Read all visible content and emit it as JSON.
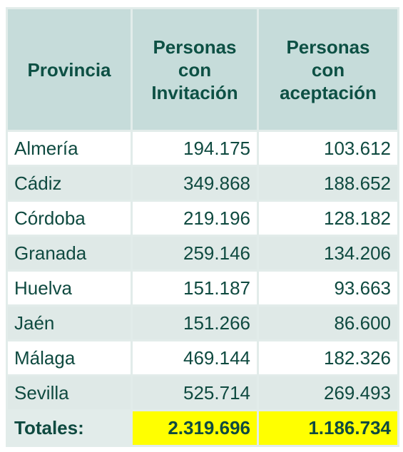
{
  "table": {
    "headers": {
      "provincia": "Provincia",
      "invitacion": "Personas con Invitación",
      "aceptacion": "Personas con aceptación"
    },
    "rows": [
      {
        "provincia": "Almería",
        "invitacion": "194.175",
        "aceptacion": "103.612"
      },
      {
        "provincia": "Cádiz",
        "invitacion": "349.868",
        "aceptacion": "188.652"
      },
      {
        "provincia": "Córdoba",
        "invitacion": "219.196",
        "aceptacion": "128.182"
      },
      {
        "provincia": "Granada",
        "invitacion": "259.146",
        "aceptacion": "134.206"
      },
      {
        "provincia": "Huelva",
        "invitacion": "151.187",
        "aceptacion": "93.663"
      },
      {
        "provincia": "Jaén",
        "invitacion": "151.266",
        "aceptacion": "86.600"
      },
      {
        "provincia": "Málaga",
        "invitacion": "469.144",
        "aceptacion": "182.326"
      },
      {
        "provincia": "Sevilla",
        "invitacion": "525.714",
        "aceptacion": "269.493"
      }
    ],
    "totals": {
      "label": "Totales:",
      "invitacion": "2.319.696",
      "aceptacion": "1.186.734"
    }
  },
  "colors": {
    "header_bg": "#c6dcda",
    "text": "#0f4a40",
    "alt_row_bg": "#dfe9e7",
    "highlight": "#ffff00"
  }
}
